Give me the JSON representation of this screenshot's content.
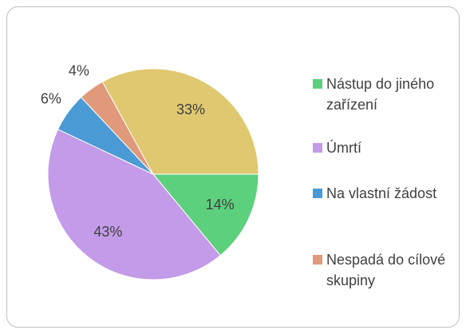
{
  "chart_data": {
    "type": "pie",
    "categories": [
      "Nástup do jiného zařízení",
      "Úmrtí",
      "Na vlastní žádost",
      "Nespadá do cílové skupiny",
      null
    ],
    "values": [
      14,
      43,
      6,
      4,
      33
    ],
    "value_labels": [
      "14%",
      "43%",
      "6%",
      "4%",
      "33%"
    ],
    "colors": [
      "#5dd07e",
      "#c39be8",
      "#4a9ad6",
      "#e0997a",
      "#e0c870"
    ]
  }
}
